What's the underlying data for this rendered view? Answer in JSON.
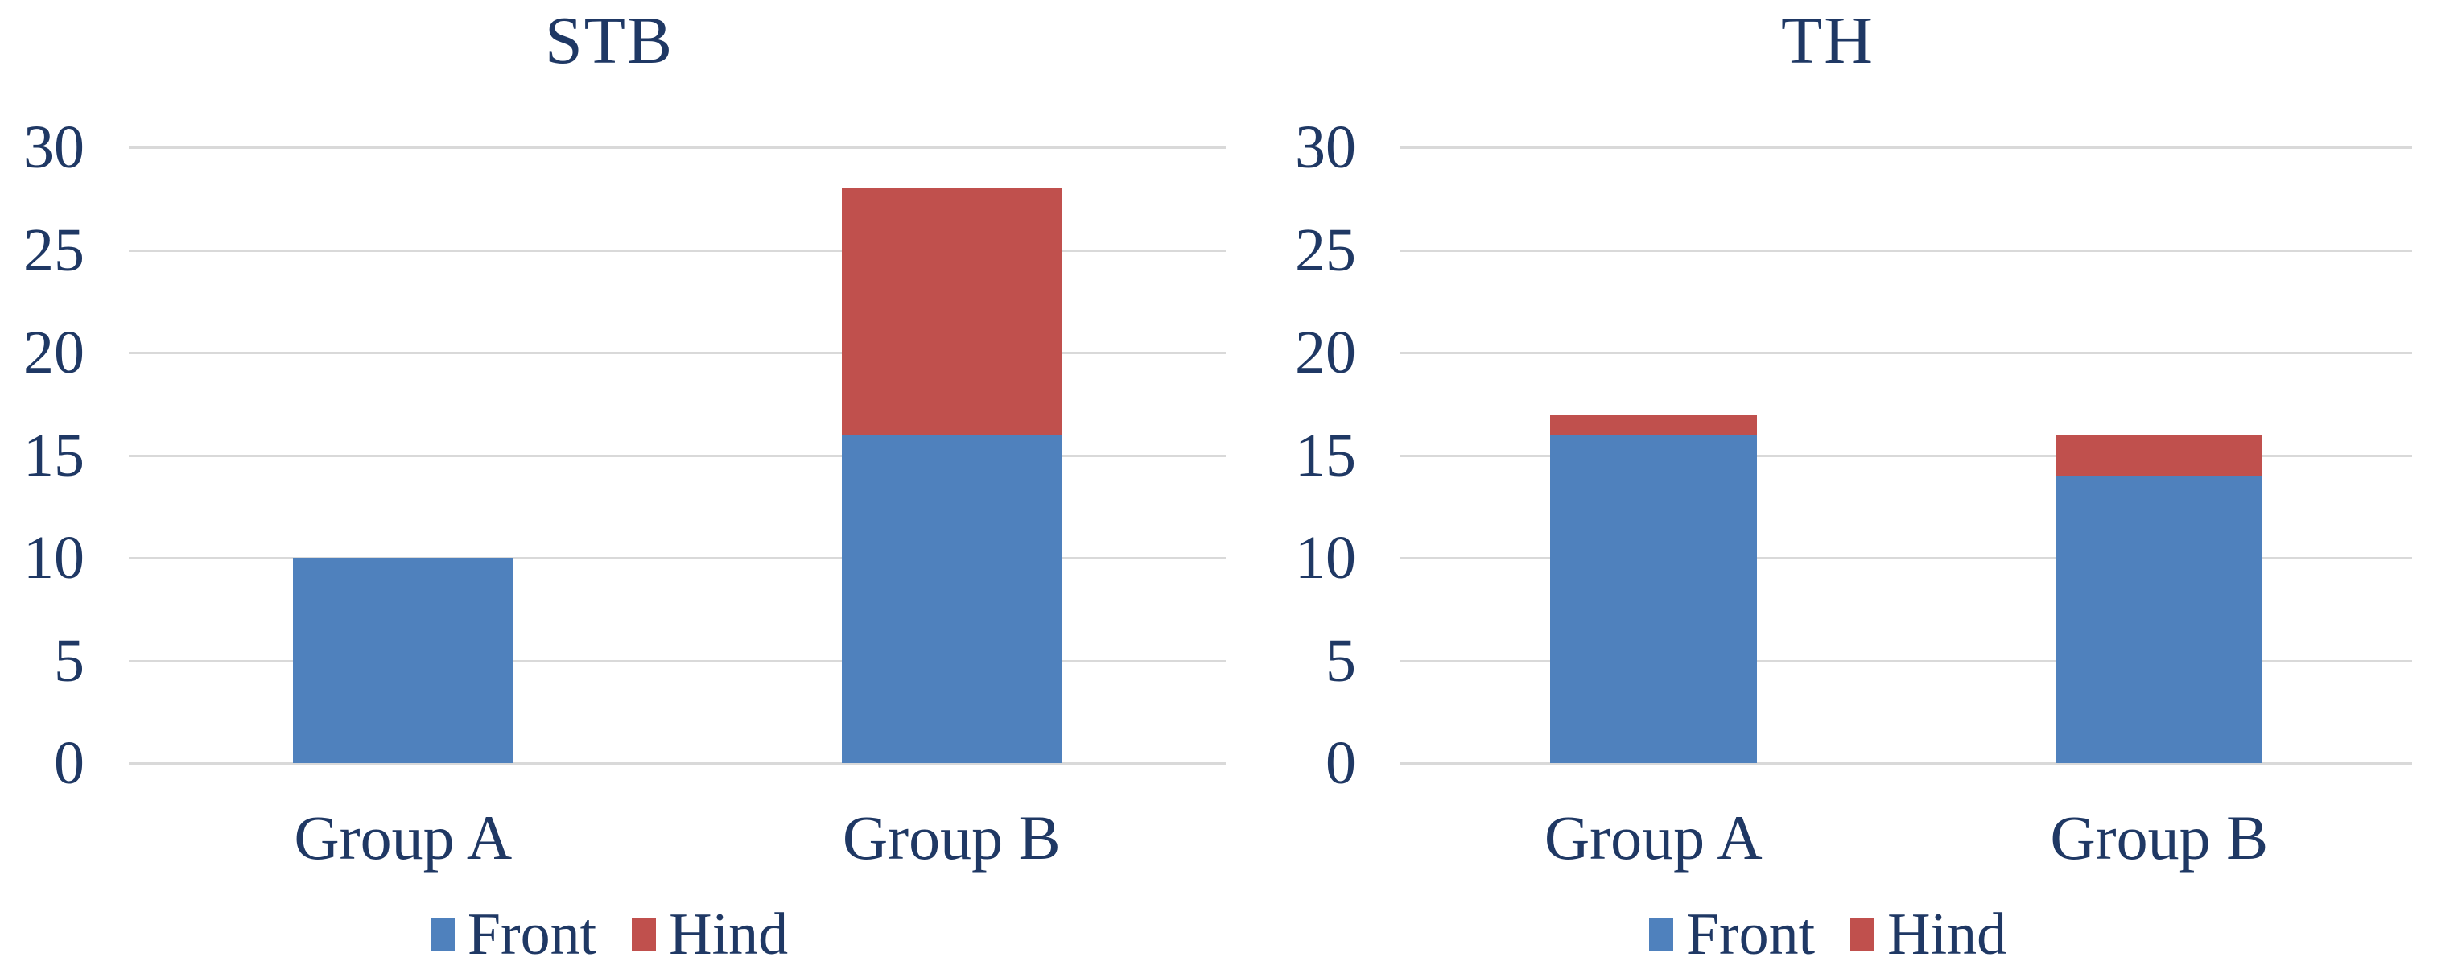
{
  "style": {
    "background": "#FFFFFF",
    "text_color": "#1F3864",
    "gridline_color": "#D9D9D9",
    "front_color": "#4F81BD",
    "hind_color": "#C0504D"
  },
  "chart_data": [
    {
      "type": "bar",
      "stacked": true,
      "title": "STB",
      "categories": [
        "Group A",
        "Group B"
      ],
      "series": [
        {
          "name": "Front",
          "color": "#4F81BD",
          "values": [
            10,
            16
          ]
        },
        {
          "name": "Hind",
          "color": "#C0504D",
          "values": [
            0,
            12
          ]
        }
      ],
      "totals": [
        10,
        28
      ],
      "xlabel": "",
      "ylabel": "",
      "ylim": [
        0,
        30
      ],
      "y_ticks": [
        0,
        5,
        10,
        15,
        20,
        25,
        30
      ],
      "grid": true,
      "legend_position": "bottom"
    },
    {
      "type": "bar",
      "stacked": true,
      "title": "TH",
      "categories": [
        "Group A",
        "Group B"
      ],
      "series": [
        {
          "name": "Front",
          "color": "#4F81BD",
          "values": [
            16,
            14
          ]
        },
        {
          "name": "Hind",
          "color": "#C0504D",
          "values": [
            1,
            2
          ]
        }
      ],
      "totals": [
        17,
        16
      ],
      "xlabel": "",
      "ylabel": "",
      "ylim": [
        0,
        30
      ],
      "y_ticks": [
        0,
        5,
        10,
        15,
        20,
        25,
        30
      ],
      "grid": true,
      "legend_position": "bottom"
    }
  ]
}
